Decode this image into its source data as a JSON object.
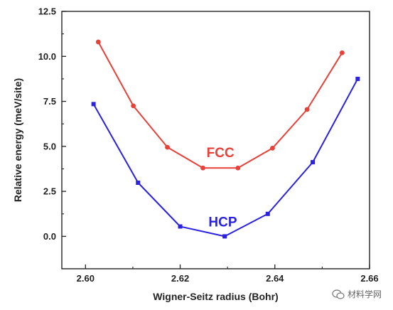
{
  "chart_data": {
    "type": "line",
    "title": "",
    "xlabel": "Wigner-Seitz radius (Bohr)",
    "ylabel": "Relative energy (meV/site)",
    "xlim": [
      2.595,
      2.66
    ],
    "ylim": [
      -1.8,
      12.5
    ],
    "xticks": [
      2.6,
      2.62,
      2.64,
      2.66
    ],
    "xtick_labels": [
      "2.60",
      "2.62",
      "2.64",
      "2.66"
    ],
    "yticks": [
      0.0,
      2.5,
      5.0,
      7.5,
      10.0,
      12.5
    ],
    "ytick_labels": [
      "0.0",
      "2.5",
      "5.0",
      "7.5",
      "10.0",
      "12.5"
    ],
    "grid": false,
    "series": [
      {
        "name": "FCC",
        "color": "#e8413a",
        "marker": "circle",
        "x": [
          2.6027,
          2.6101,
          2.6173,
          2.6248,
          2.6322,
          2.6395,
          2.6468,
          2.6542
        ],
        "y": [
          10.8,
          7.25,
          4.95,
          3.8,
          3.8,
          4.9,
          7.05,
          10.2
        ]
      },
      {
        "name": "HCP",
        "color": "#2a22e0",
        "marker": "square",
        "x": [
          2.6017,
          2.6111,
          2.62,
          2.6294,
          2.6385,
          2.648,
          2.6575
        ],
        "y": [
          7.35,
          2.98,
          0.55,
          0.0,
          1.25,
          4.12,
          8.75
        ]
      }
    ]
  },
  "watermark": {
    "text": "材料学网",
    "icon": "wechat-icon"
  }
}
